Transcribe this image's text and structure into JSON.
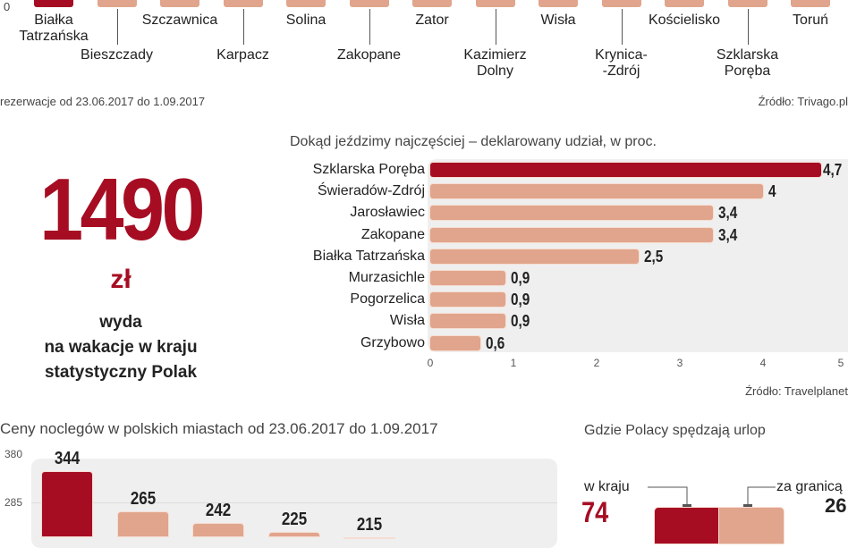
{
  "top_chart": {
    "y_tick": "0",
    "categories": [
      "Białka\nTatrzańska",
      "Bieszczady",
      "Szczawnica",
      "Karpacz",
      "Solina",
      "Zakopane",
      "Zator",
      "Kazimierz\nDolny",
      "Wisła",
      "Krynica-\n-Zdrój",
      "Kościelisko",
      "Szklarska\nPoręba",
      "Toruń"
    ],
    "highlight_index": 0,
    "note": "rezerwacje od 23.06.2017 do 1.09.2017",
    "source": "Źródło: Trivago.pl"
  },
  "chart_data": [
    {
      "type": "bar",
      "orientation": "horizontal",
      "title": "Dokąd jeździmy najczęściej – deklarowany udział, w proc.",
      "categories": [
        "Szklarska Poręba",
        "Świeradów-Zdrój",
        "Jarosławiec",
        "Zakopane",
        "Białka Tatrzańska",
        "Murzasichle",
        "Pogorzelica",
        "Wisła",
        "Grzybowo"
      ],
      "values": [
        4.7,
        4,
        3.4,
        3.4,
        2.5,
        0.9,
        0.9,
        0.9,
        0.6
      ],
      "value_labels": [
        "4,7",
        "4",
        "3,4",
        "3,4",
        "2,5",
        "0,9",
        "0,9",
        "0,9",
        "0,6"
      ],
      "xlim": [
        0,
        5
      ],
      "xticks": [
        "0",
        "1",
        "2",
        "3",
        "4",
        "5"
      ],
      "highlight_color": "#a60d23",
      "bar_color": "#e0a58c",
      "source": "Źródło: Travelplanet"
    },
    {
      "type": "bar",
      "title": "Ceny noclegów w polskich miastach od 23.06.2017 do 1.09.2017",
      "values": [
        344,
        265,
        242,
        225,
        215
      ],
      "value_labels": [
        "344",
        "265",
        "242",
        "225",
        "215"
      ],
      "yticks": [
        "380",
        "285"
      ],
      "highlight_color": "#a60d23",
      "bar_color": "#e0a58c"
    },
    {
      "type": "bar",
      "stacked": true,
      "title": "Gdzie Polacy spędzają urlop",
      "categories": [
        "w kraju",
        "za granicą"
      ],
      "values": [
        74,
        26
      ],
      "value_labels": [
        "74",
        "26"
      ]
    }
  ],
  "stat": {
    "value": "1490",
    "unit": "zł",
    "lines": [
      "wyda",
      "na wakacje w kraju",
      "statystyczny Polak"
    ]
  }
}
